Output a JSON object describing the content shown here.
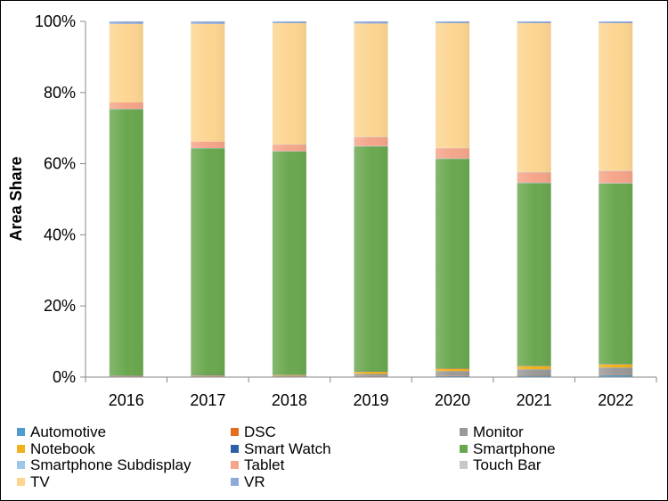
{
  "chart_data": {
    "type": "bar",
    "stacked": true,
    "title": "",
    "xlabel": "",
    "ylabel": "Area Share",
    "ylim": [
      0,
      100
    ],
    "yticks": [
      "0%",
      "20%",
      "40%",
      "60%",
      "80%",
      "100%"
    ],
    "categories": [
      "2016",
      "2017",
      "2018",
      "2019",
      "2020",
      "2021",
      "2022"
    ],
    "legend_position": "bottom",
    "series": [
      {
        "name": "Automotive",
        "color": "#4f9ccb",
        "values": [
          0.1,
          0.1,
          0.1,
          0.2,
          0.3,
          0.4,
          0.5
        ]
      },
      {
        "name": "DSC",
        "color": "#e36c1e",
        "values": [
          0.1,
          0.1,
          0.1,
          0.1,
          0.1,
          0.1,
          0.1
        ]
      },
      {
        "name": "Monitor",
        "color": "#9a9a9a",
        "values": [
          0.1,
          0.2,
          0.2,
          0.6,
          1.3,
          1.7,
          2.1
        ]
      },
      {
        "name": "Notebook",
        "color": "#f0b21b",
        "values": [
          0.1,
          0.1,
          0.2,
          0.6,
          0.7,
          0.9,
          0.9
        ]
      },
      {
        "name": "Smart Watch",
        "color": "#2e5ea8",
        "values": [
          0.1,
          0.1,
          0.1,
          0.1,
          0.1,
          0.1,
          0.1
        ]
      },
      {
        "name": "Smartphone",
        "color": "#6aa84f",
        "values": [
          74.8,
          63.7,
          62.7,
          63.2,
          58.8,
          51.3,
          50.7
        ]
      },
      {
        "name": "Smartphone Subdisplay",
        "color": "#9fc7ea",
        "values": [
          0.1,
          0.1,
          0.1,
          0.1,
          0.1,
          0.1,
          0.1
        ]
      },
      {
        "name": "Tablet",
        "color": "#f4a58a",
        "values": [
          1.8,
          1.8,
          1.8,
          2.5,
          2.9,
          2.9,
          3.4
        ]
      },
      {
        "name": "Touch Bar",
        "color": "#c8c8c8",
        "values": [
          0.0,
          0.0,
          0.1,
          0.1,
          0.1,
          0.1,
          0.1
        ]
      },
      {
        "name": "TV",
        "color": "#fcd591",
        "values": [
          22.1,
          33.1,
          34.1,
          31.8,
          35.0,
          41.8,
          41.4
        ]
      },
      {
        "name": "VR",
        "color": "#8ea9d8",
        "values": [
          0.7,
          0.7,
          0.5,
          0.6,
          0.5,
          0.5,
          0.5
        ]
      }
    ]
  }
}
